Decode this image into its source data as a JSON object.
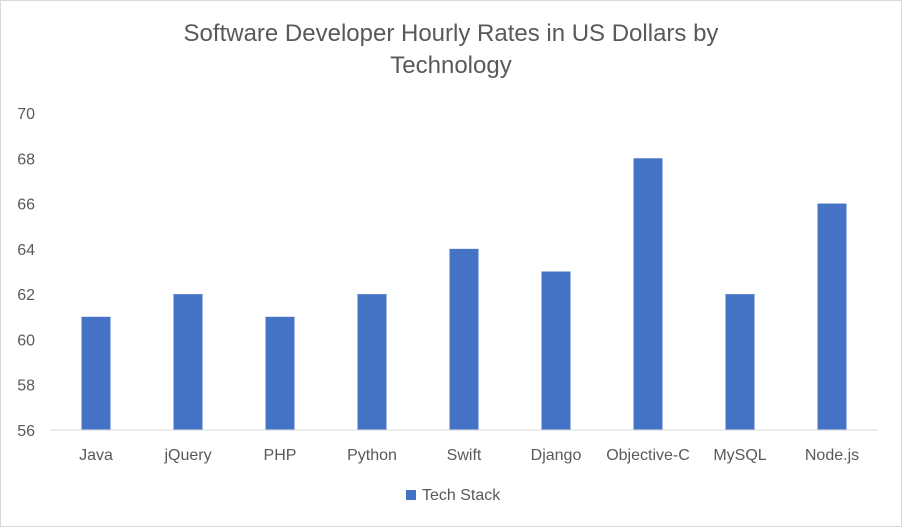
{
  "chart_data": {
    "type": "bar",
    "title_lines": [
      "Software Developer Hourly Rates in US Dollars by",
      "Technology"
    ],
    "categories": [
      "Java",
      "jQuery",
      "PHP",
      "Python",
      "Swift",
      "Django",
      "Objective-C",
      "MySQL",
      "Node.js"
    ],
    "series": [
      {
        "name": "Tech Stack",
        "values": [
          61,
          62,
          61,
          62,
          64,
          63,
          68,
          62,
          66
        ],
        "color": "#4472c4"
      }
    ],
    "ylim": [
      56,
      70
    ],
    "yticks": [
      56,
      58,
      60,
      62,
      64,
      66,
      68,
      70
    ],
    "grid": false,
    "legend_position": "bottom",
    "axis_color": "#d9d9d9",
    "text_color": "#595959"
  }
}
